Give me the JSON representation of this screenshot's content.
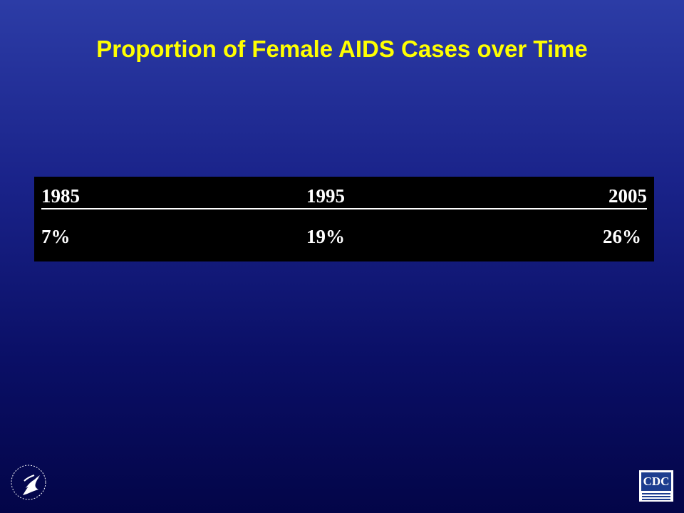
{
  "header": {
    "title": "Proportion of Female AIDS Cases over Time"
  },
  "table": {
    "rows": [
      [
        "1985",
        "1995",
        "2005"
      ],
      [
        "7%",
        "19%",
        "26%"
      ]
    ]
  },
  "logos": {
    "cdc": "CDC"
  }
}
